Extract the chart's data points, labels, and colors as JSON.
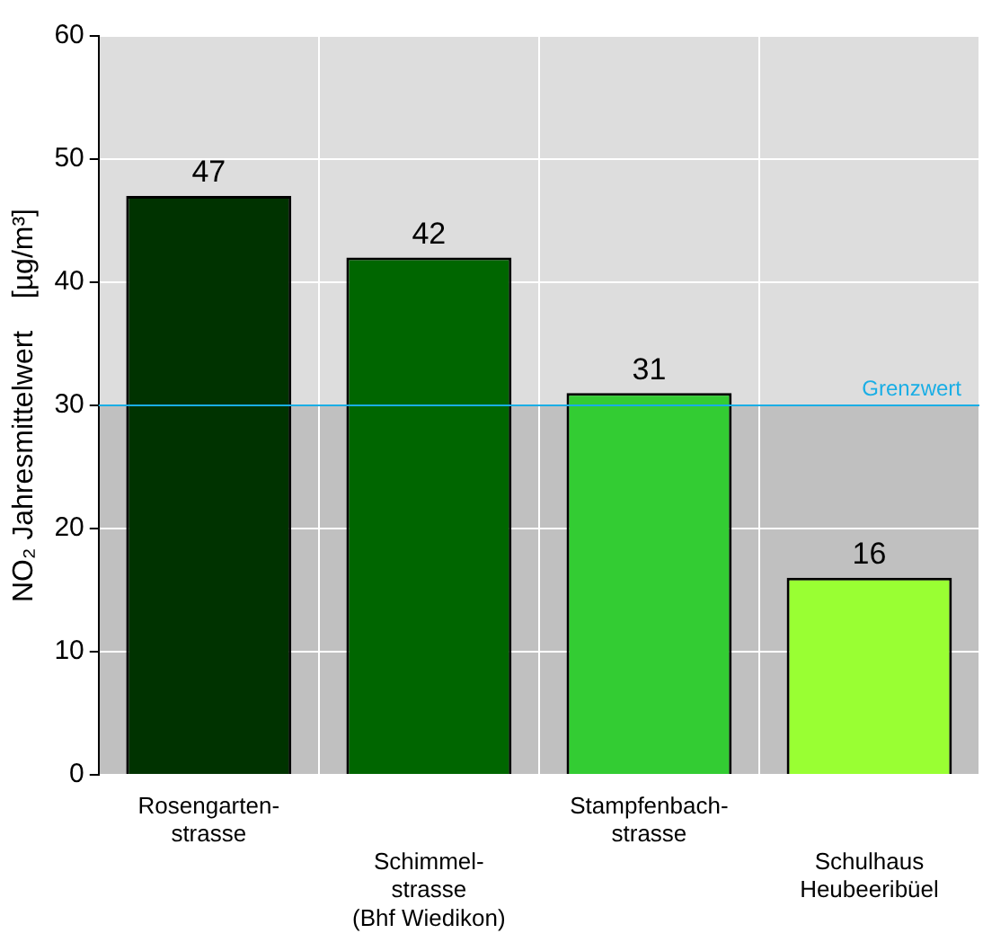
{
  "chart_data": {
    "type": "bar",
    "ylabel": "NO₂ Jahresmittelwert    [µg/m³]",
    "categories": [
      "Rosengarten-\nstrasse",
      "Schimmel-\nstrasse\n(Bhf Wiedikon)",
      "Stampfenbach-\nstrasse",
      "Schulhaus\nHeubeeribüel"
    ],
    "values": [
      47,
      42,
      31,
      16
    ],
    "colors": [
      "#003300",
      "#006600",
      "#33cc33",
      "#99ff33"
    ],
    "ylim": [
      0,
      60
    ],
    "yticks": [
      0,
      10,
      20,
      30,
      40,
      50,
      60
    ],
    "grid": true,
    "data_labels": true,
    "ref_lines": [
      {
        "axis": "y",
        "value": 30,
        "label": "Grenzwert",
        "color": "#1aaee5"
      }
    ],
    "bands": [
      {
        "axis": "y",
        "from": 0,
        "to": 30,
        "label": null,
        "color": "#c0c0c0"
      },
      {
        "axis": "y",
        "from": 30,
        "to": 60,
        "label": null,
        "color": "#dddddd"
      }
    ]
  }
}
